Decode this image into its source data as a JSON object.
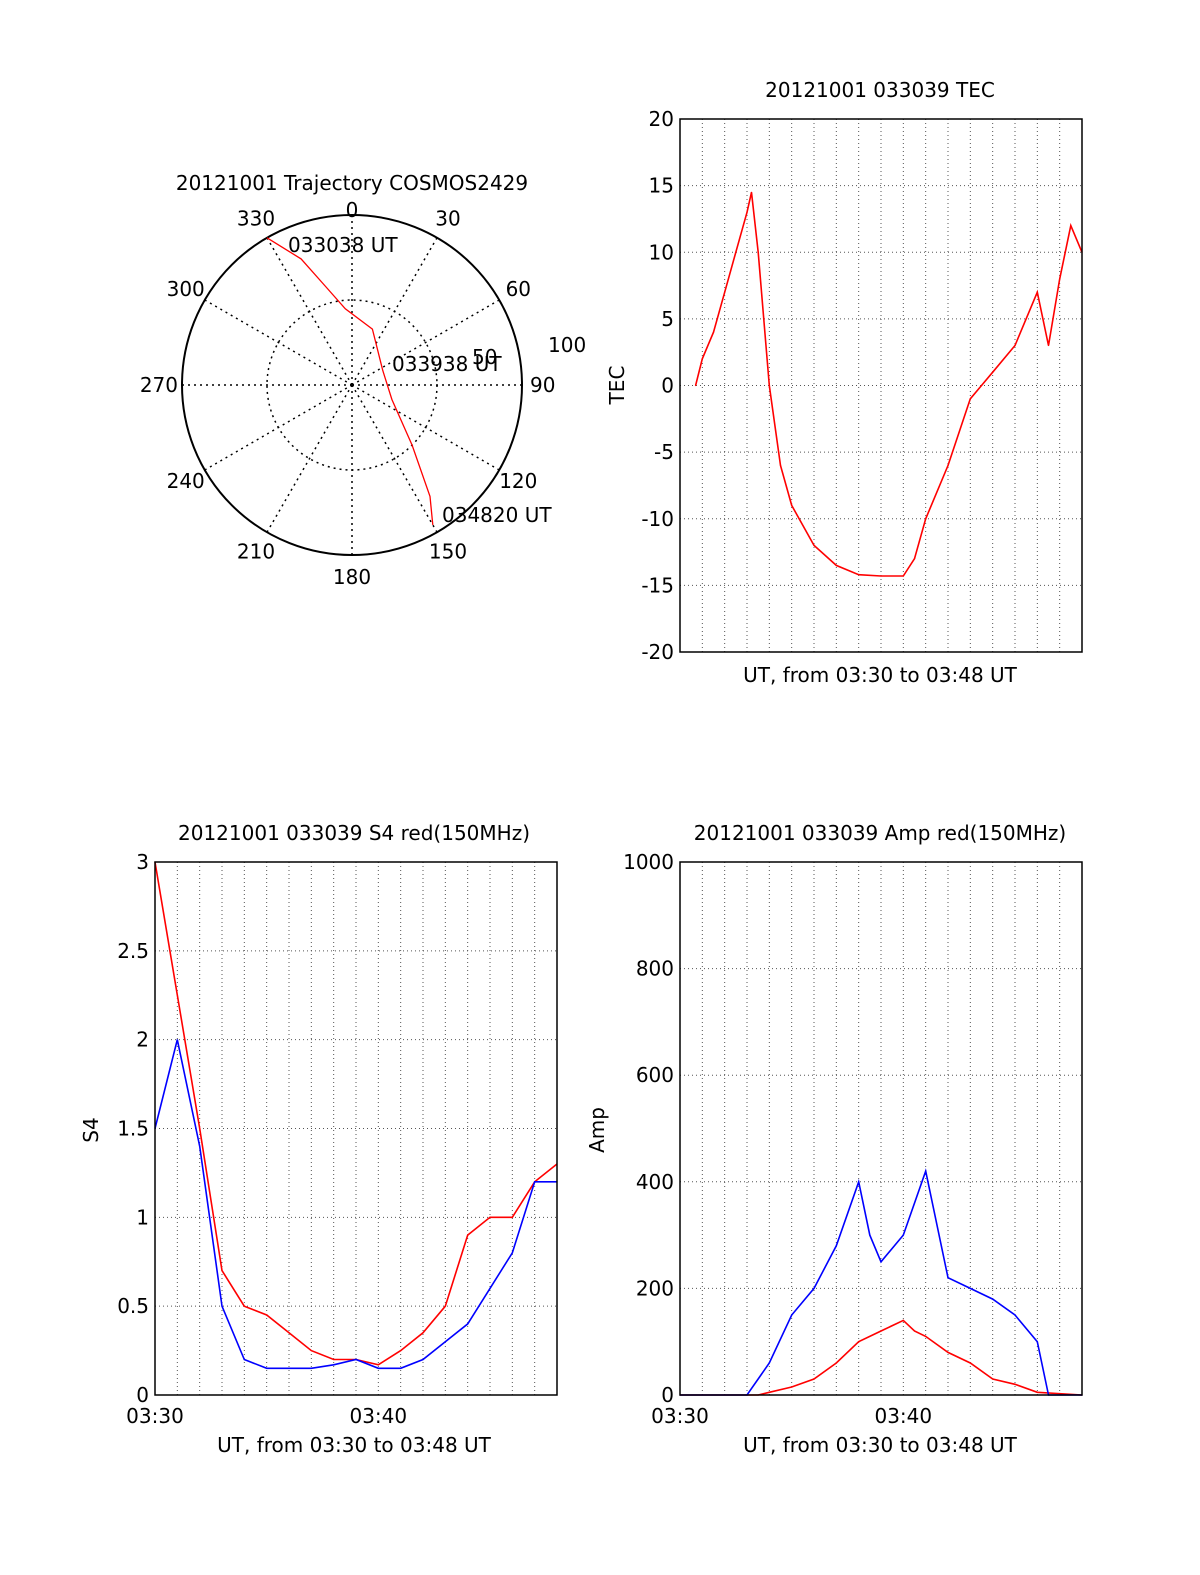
{
  "colors": {
    "red": "#ff0000",
    "blue": "#0000ff",
    "black": "#000000",
    "grid": "#555555"
  },
  "chart_data": [
    {
      "type": "polar",
      "title": "20121001 Trajectory COSMOS2429",
      "angle_labels": [
        "0",
        "30",
        "60",
        "90",
        "120",
        "150",
        "180",
        "210",
        "240",
        "270",
        "300",
        "330"
      ],
      "radius_labels": [
        "50",
        "100"
      ],
      "rlim": [
        0,
        100
      ],
      "annotations": [
        "033038 UT",
        "033938 UT",
        "034820 UT"
      ],
      "series": [
        {
          "color": "red",
          "points": [
            [
              330,
              100
            ],
            [
              338,
              80
            ],
            [
              345,
              60
            ],
            [
              355,
              45
            ],
            [
              20,
              35
            ],
            [
              65,
              20
            ],
            [
              110,
              25
            ],
            [
              135,
              50
            ],
            [
              145,
              80
            ],
            [
              150,
              95
            ]
          ]
        }
      ]
    },
    {
      "type": "line",
      "title": "20121001 033039 TEC",
      "xlabel": "UT, from 03:30 to 03:48 UT",
      "ylabel": "TEC",
      "xlim": [
        0,
        18
      ],
      "ylim": [
        -20,
        20
      ],
      "yticks": [
        "20",
        "15",
        "10",
        "5",
        "0",
        "-5",
        "-10",
        "-15",
        "-20"
      ],
      "grid": true,
      "series": [
        {
          "color": "red",
          "x": [
            0.7,
            1.0,
            1.5,
            2.0,
            2.5,
            3.0,
            3.2,
            3.5,
            4.0,
            4.5,
            5.0,
            6.0,
            7.0,
            8.0,
            9.0,
            10.0,
            10.5,
            11.0,
            12.0,
            13.0,
            13.5,
            14.0,
            15.0,
            16.0,
            16.5,
            17.0,
            17.5,
            18.0
          ],
          "y": [
            0,
            2,
            4,
            7,
            10,
            13,
            14.5,
            10,
            0,
            -6,
            -9,
            -12,
            -13.5,
            -14.2,
            -14.3,
            -14.3,
            -13,
            -10,
            -6,
            -1,
            0,
            1,
            3,
            7,
            3,
            8,
            12,
            10
          ]
        }
      ]
    },
    {
      "type": "line",
      "title": "20121001 033039 S4 red(150MHz)",
      "xlabel": "UT, from 03:30 to 03:48 UT",
      "ylabel": "S4",
      "xlim": [
        0,
        18
      ],
      "ylim": [
        0,
        3
      ],
      "yticks": [
        "3",
        "2.5",
        "2",
        "1.5",
        "1",
        "0.5",
        "0"
      ],
      "xticks": [
        "03:30",
        "03:40"
      ],
      "grid": true,
      "series": [
        {
          "color": "red",
          "x": [
            0,
            2,
            3,
            4,
            5,
            6,
            7,
            8,
            9,
            10,
            11,
            12,
            13,
            14,
            15,
            16,
            17,
            18
          ],
          "y": [
            3,
            1.5,
            0.7,
            0.5,
            0.45,
            0.35,
            0.25,
            0.2,
            0.2,
            0.17,
            0.25,
            0.35,
            0.5,
            0.9,
            1.0,
            1.0,
            1.2,
            1.3
          ]
        },
        {
          "color": "blue",
          "x": [
            0,
            1,
            2,
            3,
            4,
            5,
            6,
            7,
            8,
            9,
            10,
            11,
            12,
            13,
            14,
            15,
            16,
            17,
            18
          ],
          "y": [
            1.5,
            2.0,
            1.4,
            0.5,
            0.2,
            0.15,
            0.15,
            0.15,
            0.17,
            0.2,
            0.15,
            0.15,
            0.2,
            0.3,
            0.4,
            0.6,
            0.8,
            1.2,
            1.2
          ]
        }
      ]
    },
    {
      "type": "line",
      "title": "20121001 033039 Amp red(150MHz)",
      "xlabel": "UT, from 03:30 to 03:48 UT",
      "ylabel": "Amp",
      "xlim": [
        0,
        18
      ],
      "ylim": [
        0,
        1000
      ],
      "yticks": [
        "1000",
        "800",
        "600",
        "400",
        "200",
        "0"
      ],
      "xticks": [
        "03:30",
        "03:40"
      ],
      "grid": true,
      "series": [
        {
          "color": "red",
          "x": [
            0,
            3.5,
            4,
            5,
            6,
            7,
            8,
            9,
            10,
            10.5,
            11,
            12,
            13,
            14,
            15,
            16,
            18
          ],
          "y": [
            0,
            0,
            5,
            15,
            30,
            60,
            100,
            120,
            140,
            120,
            110,
            80,
            60,
            30,
            20,
            5,
            0
          ]
        },
        {
          "color": "blue",
          "x": [
            0,
            3,
            4,
            5,
            6,
            7,
            8,
            8.5,
            9,
            10,
            11,
            12,
            13,
            14,
            15,
            16,
            16.5,
            18
          ],
          "y": [
            0,
            0,
            60,
            150,
            200,
            280,
            400,
            300,
            250,
            300,
            420,
            220,
            200,
            180,
            150,
            100,
            0,
            0
          ]
        }
      ]
    }
  ]
}
